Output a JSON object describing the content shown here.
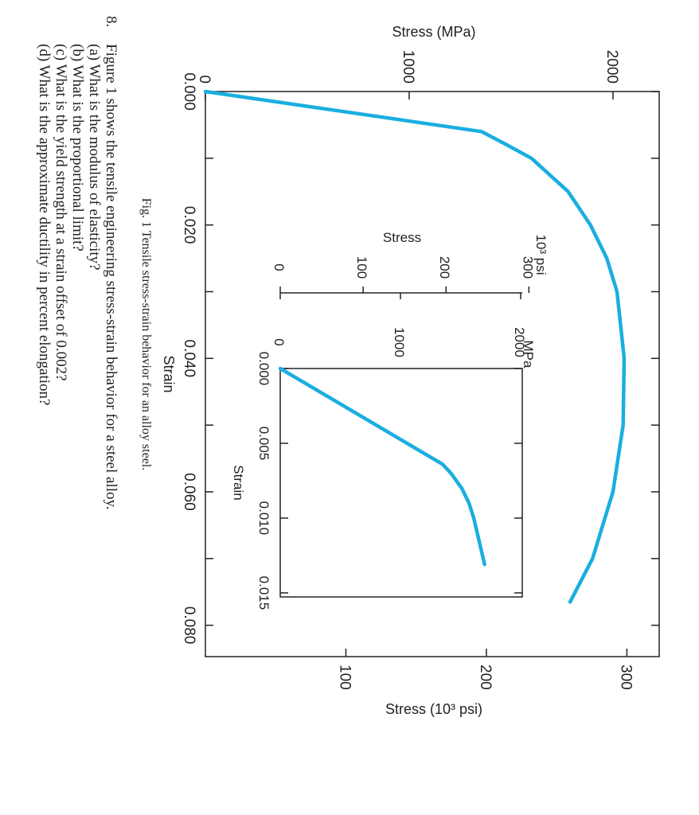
{
  "problem": {
    "number": "8.",
    "lines": [
      "Figure 1 shows the tensile engineering stress-strain behavior for a steel alloy.",
      "(a)  What is the modulus of elasticity?",
      "(b)  What is the proportional limit?",
      "(c)  What is the yield strength at a strain offset of 0.002?",
      "(d)  What is the approximate ductility in percent elongation?"
    ]
  },
  "caption": "Fig. 1 Tensile stress-strain behavior for an alloy steel.",
  "chart_data": [
    {
      "type": "line",
      "x_label": "Strain",
      "y_label": "Stress (MPa)",
      "y2_label": "Stress (10³ psi)",
      "x": [
        0,
        0.006,
        0.008,
        0.01,
        0.015,
        0.02,
        0.025,
        0.03,
        0.04,
        0.05,
        0.06,
        0.07,
        0.0765
      ],
      "series": [
        {
          "color": "#1aaee0",
          "values": [
            0,
            1355,
            1480,
            1600,
            1780,
            1890,
            1970,
            2020,
            2055,
            2050,
            2000,
            1900,
            1790
          ]
        }
      ],
      "xlim": [
        0,
        0.0847
      ],
      "ylim": [
        0,
        2227
      ],
      "y2lim": [
        0,
        323
      ],
      "xticks": [
        {
          "value": 0,
          "label": "0.000"
        },
        {
          "value": 0.02,
          "label": "0.020"
        },
        {
          "value": 0.04,
          "label": "0.040"
        },
        {
          "value": 0.06,
          "label": "0.060"
        },
        {
          "value": 0.08,
          "label": "0.080"
        }
      ],
      "xminorticks": [
        0.01,
        0.03,
        0.05,
        0.07
      ],
      "yticks": [
        0,
        1000,
        2000
      ],
      "y2ticks": [
        100,
        200,
        300
      ]
    },
    {
      "type": "line",
      "x_label": "Strain",
      "y_label": "Stress",
      "y_unit": "MPa",
      "y2_unit": "10³ psi",
      "x": [
        0,
        0.0064,
        0.007,
        0.008,
        0.009,
        0.01,
        0.0131
      ],
      "series": [
        {
          "color": "#1aaee0",
          "values": [
            0,
            1350,
            1420,
            1510,
            1570,
            1610,
            1700
          ]
        }
      ],
      "xlim": [
        0,
        0.01527
      ],
      "ylim": [
        0,
        2013
      ],
      "y2lim": [
        0,
        292
      ],
      "xticks": [
        {
          "value": 0,
          "label": "0.000"
        },
        {
          "value": 0.005,
          "label": "0.005"
        },
        {
          "value": 0.01,
          "label": "0.010"
        },
        {
          "value": 0.015,
          "label": "0.015"
        }
      ],
      "yticks": [
        0,
        1000,
        2000
      ],
      "y2ticks": [
        0,
        100,
        200,
        300
      ]
    }
  ]
}
